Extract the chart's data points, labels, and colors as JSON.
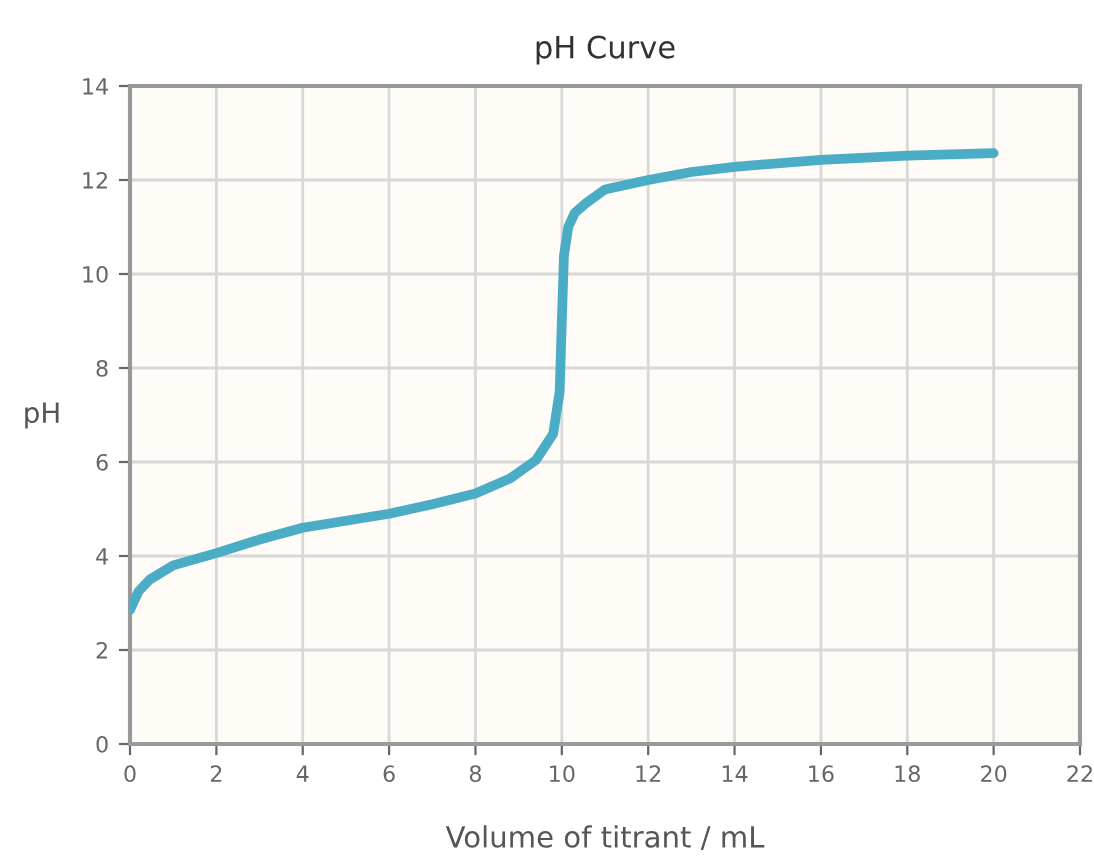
{
  "chart_data": {
    "type": "line",
    "title": "pH Curve",
    "xlabel": "Volume of titrant / mL",
    "ylabel": "pH",
    "series": [
      {
        "color": "#4bacc6",
        "x": [
          0,
          0.2,
          0.46,
          1,
          2,
          3,
          4,
          5,
          6,
          7,
          8,
          8.8,
          9.4,
          9.8,
          9.95,
          10.0,
          10.05,
          10.15,
          10.3,
          10.55,
          11,
          12,
          13,
          14,
          16,
          18,
          20
        ],
        "values": [
          2.85,
          3.25,
          3.5,
          3.8,
          4.06,
          4.35,
          4.6,
          4.75,
          4.9,
          5.1,
          5.33,
          5.65,
          6.04,
          6.6,
          7.5,
          9.0,
          10.4,
          11.0,
          11.3,
          11.5,
          11.8,
          12.0,
          12.17,
          12.28,
          12.43,
          12.52,
          12.57
        ]
      }
    ],
    "xlim": [
      0,
      22
    ],
    "xticks": [
      0,
      2,
      4,
      6,
      8,
      10,
      12,
      14,
      16,
      18,
      20,
      22
    ],
    "ylim": [
      0,
      14
    ],
    "yticks": [
      0,
      2,
      4,
      6,
      8,
      10,
      12,
      14
    ],
    "grid": true,
    "marker": "none",
    "line_style": "solid"
  }
}
